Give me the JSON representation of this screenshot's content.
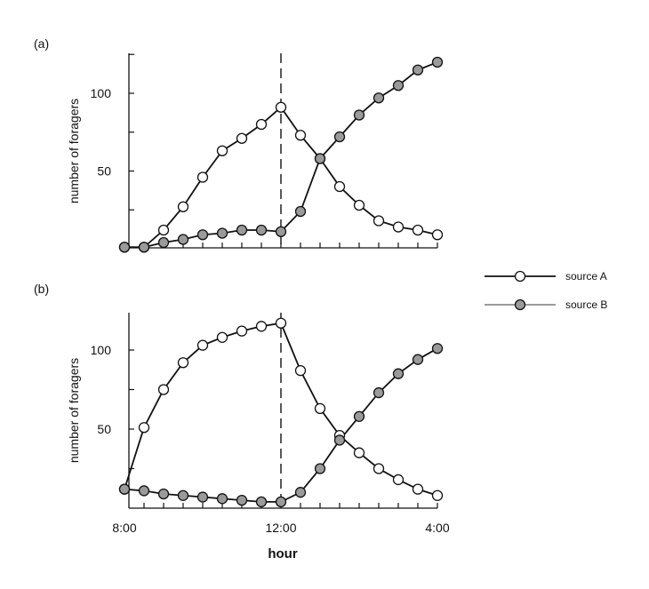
{
  "chart_data": [
    {
      "panel_label": "(a)",
      "type": "line",
      "xlabel": "",
      "ylabel": "number of foragers",
      "x_hours": [
        8,
        8.5,
        9,
        9.5,
        10,
        10.5,
        11,
        11.5,
        12,
        12.5,
        13,
        13.5,
        14,
        14.5,
        15,
        15.5,
        16
      ],
      "xlim": [
        8,
        16
      ],
      "ylim": [
        0,
        125
      ],
      "yticks": [
        50,
        100
      ],
      "ytick_labels": [
        "50",
        "100"
      ],
      "vline_hour": 12,
      "series": [
        {
          "key": "A",
          "values": [
            1,
            1,
            12,
            27,
            46,
            63,
            71,
            80,
            91,
            73,
            58,
            40,
            28,
            18,
            14,
            12,
            9
          ]
        },
        {
          "key": "B",
          "values": [
            1,
            1,
            4,
            6,
            9,
            10,
            12,
            12,
            11,
            24,
            58,
            72,
            86,
            97,
            105,
            115,
            120
          ]
        }
      ]
    },
    {
      "panel_label": "(b)",
      "type": "line",
      "xlabel": "hour",
      "ylabel": "number of foragers",
      "x_hours": [
        8,
        8.5,
        9,
        9.5,
        10,
        10.5,
        11,
        11.5,
        12,
        12.5,
        13,
        13.5,
        14,
        14.5,
        15,
        15.5,
        16
      ],
      "xlim": [
        8,
        16
      ],
      "ylim": [
        0,
        125
      ],
      "yticks": [
        50,
        100
      ],
      "ytick_labels": [
        "50",
        "100"
      ],
      "xticks": [
        8,
        12,
        16
      ],
      "xtick_labels": [
        "8:00",
        "12:00",
        "4:00"
      ],
      "vline_hour": 12,
      "series": [
        {
          "key": "A",
          "values": [
            12,
            51,
            75,
            92,
            103,
            108,
            112,
            115,
            117,
            87,
            63,
            46,
            35,
            25,
            18,
            12,
            8
          ]
        },
        {
          "key": "B",
          "values": [
            12,
            11,
            9,
            8,
            7,
            6,
            5,
            4,
            4,
            10,
            25,
            43,
            58,
            73,
            85,
            94,
            101
          ]
        }
      ]
    }
  ],
  "legend": {
    "position": "right",
    "items": [
      {
        "key": "A",
        "label": "source A",
        "marker_fill": "#ffffff",
        "line_color": "#111111"
      },
      {
        "key": "B",
        "label": "source B",
        "marker_fill": "#9a9a9a",
        "line_color": "#8c8c8c"
      }
    ]
  },
  "colors": {
    "line": "#111111",
    "marker_stroke": "#111111",
    "marker_open_fill": "#ffffff",
    "marker_filled_fill": "#9a9a9a",
    "legend_b_line": "#8c8c8c"
  }
}
